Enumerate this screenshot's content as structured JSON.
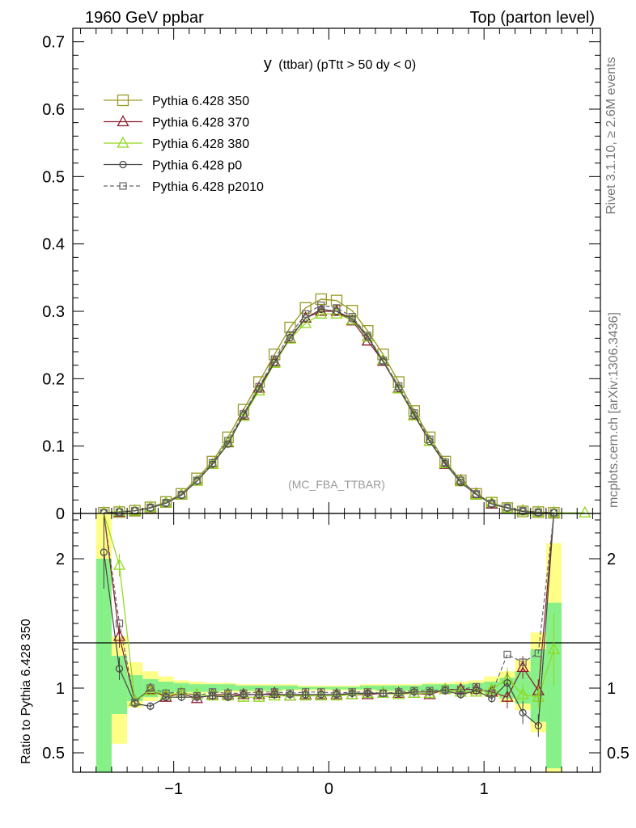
{
  "header": {
    "left": "1960 GeV ppbar",
    "right": "Top (parton level)"
  },
  "side_labels": {
    "rivet": "Rivet 3.1.10, ≥ 2.6M events",
    "mcplots": "mcplots.cern.ch [arXiv:1306.3436]"
  },
  "plot_title": {
    "main": "y",
    "sub": "(ttbar) (pTtt > 50 dy < 0)"
  },
  "watermark": "(MC_FBA_TTBAR)",
  "ratio_ylabel": "Ratio to Pythia 6.428 350",
  "colors": {
    "s350": "#9a9a26",
    "s370": "#8b1a2e",
    "s380": "#8fd81a",
    "p0": "#444444",
    "p2010": "#666666",
    "band_yellow": "#ffff88",
    "band_green": "#88f088"
  },
  "chart_data": [
    {
      "type": "line",
      "panel": "main",
      "xlim": [
        -1.65,
        1.75
      ],
      "ylim": [
        0,
        0.72
      ],
      "yticks": [
        "0",
        "0.1",
        "0.2",
        "0.3",
        "0.4",
        "0.5",
        "0.6",
        "0.7"
      ],
      "x": [
        -1.45,
        -1.35,
        -1.25,
        -1.15,
        -1.05,
        -0.95,
        -0.85,
        -0.75,
        -0.65,
        -0.55,
        -0.45,
        -0.35,
        -0.25,
        -0.15,
        -0.05,
        0.05,
        0.15,
        0.25,
        0.35,
        0.45,
        0.55,
        0.65,
        0.75,
        0.85,
        0.95,
        1.05,
        1.15,
        1.25,
        1.35,
        1.45,
        1.55,
        1.65
      ],
      "series": [
        {
          "name": "Pythia 6.428 350",
          "marker": "square",
          "values": [
            0.001,
            0.002,
            0.004,
            0.009,
            0.017,
            0.029,
            0.052,
            0.077,
            0.113,
            0.154,
            0.195,
            0.236,
            0.276,
            0.305,
            0.318,
            0.316,
            0.301,
            0.271,
            0.236,
            0.195,
            0.152,
            0.113,
            0.077,
            0.049,
            0.029,
            0.016,
            0.008,
            0.003,
            0.002,
            0.001,
            null,
            null
          ]
        },
        {
          "name": "Pythia 6.428 370",
          "marker": "triangle",
          "values": [
            0.001,
            0.002,
            0.004,
            0.009,
            0.016,
            0.028,
            0.048,
            0.073,
            0.105,
            0.146,
            0.186,
            0.225,
            0.26,
            0.29,
            0.3,
            0.3,
            0.286,
            0.256,
            0.226,
            0.186,
            0.146,
            0.107,
            0.073,
            0.049,
            0.029,
            0.014,
            0.008,
            0.004,
            0.002,
            0.001,
            null,
            null
          ]
        },
        {
          "name": "Pythia 6.428 380",
          "marker": "triangle",
          "values": [
            0.001,
            0.003,
            0.004,
            0.009,
            0.016,
            0.028,
            0.048,
            0.073,
            0.106,
            0.144,
            0.182,
            0.223,
            0.259,
            0.282,
            0.296,
            0.296,
            0.287,
            0.262,
            0.228,
            0.185,
            0.145,
            0.107,
            0.074,
            0.048,
            0.028,
            0.016,
            0.008,
            0.004,
            0.002,
            0.001,
            null,
            0.001
          ]
        },
        {
          "name": "Pythia 6.428 p0",
          "marker": "circle",
          "values": [
            0.001,
            0.002,
            0.004,
            0.008,
            0.015,
            0.027,
            0.048,
            0.073,
            0.103,
            0.146,
            0.185,
            0.224,
            0.261,
            0.29,
            0.303,
            0.3,
            0.289,
            0.262,
            0.225,
            0.186,
            0.146,
            0.107,
            0.074,
            0.046,
            0.028,
            0.014,
            0.008,
            0.003,
            0.001,
            0.001,
            null,
            null
          ]
        },
        {
          "name": "Pythia 6.428 p2010",
          "marker": "square-small",
          "dashed": true,
          "values": [
            0.001,
            0.002,
            0.004,
            0.009,
            0.016,
            0.028,
            0.049,
            0.075,
            0.108,
            0.148,
            0.188,
            0.229,
            0.265,
            0.296,
            0.309,
            0.305,
            0.292,
            0.264,
            0.227,
            0.189,
            0.149,
            0.11,
            0.076,
            0.049,
            0.029,
            0.015,
            0.009,
            0.004,
            0.002,
            0.001,
            null,
            null
          ]
        }
      ]
    },
    {
      "type": "line",
      "panel": "ratio",
      "xlim": [
        -1.65,
        1.75
      ],
      "ylim": [
        0.35,
        2.35
      ],
      "yticks": [
        "0.5",
        "1",
        "2"
      ],
      "xticks": [
        "−1",
        "0",
        "1"
      ],
      "x": [
        -1.45,
        -1.35,
        -1.25,
        -1.15,
        -1.05,
        -0.95,
        -0.85,
        -0.75,
        -0.65,
        -0.55,
        -0.45,
        -0.35,
        -0.25,
        -0.15,
        -0.05,
        0.05,
        0.15,
        0.25,
        0.35,
        0.45,
        0.55,
        0.65,
        0.75,
        0.85,
        0.95,
        1.05,
        1.15,
        1.25,
        1.35,
        1.45
      ],
      "band_yellow": [
        [
          0.35,
          2.35
        ],
        [
          0.57,
          1.4
        ],
        [
          0.85,
          1.2
        ],
        [
          0.9,
          1.13
        ],
        [
          0.93,
          1.09
        ],
        [
          0.95,
          1.06
        ],
        [
          0.96,
          1.05
        ],
        [
          0.96,
          1.04
        ],
        [
          0.97,
          1.04
        ],
        [
          0.97,
          1.03
        ],
        [
          0.97,
          1.03
        ],
        [
          0.97,
          1.03
        ],
        [
          0.98,
          1.03
        ],
        [
          0.98,
          1.02
        ],
        [
          0.98,
          1.02
        ],
        [
          0.98,
          1.02
        ],
        [
          0.98,
          1.02
        ],
        [
          0.98,
          1.03
        ],
        [
          0.97,
          1.03
        ],
        [
          0.97,
          1.03
        ],
        [
          0.97,
          1.03
        ],
        [
          0.97,
          1.04
        ],
        [
          0.96,
          1.04
        ],
        [
          0.96,
          1.05
        ],
        [
          0.95,
          1.06
        ],
        [
          0.93,
          1.09
        ],
        [
          0.89,
          1.13
        ],
        [
          0.83,
          1.22
        ],
        [
          0.66,
          1.43
        ],
        [
          0.35,
          2.12
        ]
      ],
      "band_green": [
        [
          0.35,
          2.0
        ],
        [
          0.8,
          1.25
        ],
        [
          0.9,
          1.1
        ],
        [
          0.93,
          1.07
        ],
        [
          0.95,
          1.05
        ],
        [
          0.97,
          1.04
        ],
        [
          0.97,
          1.03
        ],
        [
          0.97,
          1.03
        ],
        [
          0.98,
          1.03
        ],
        [
          0.98,
          1.02
        ],
        [
          0.98,
          1.02
        ],
        [
          0.98,
          1.02
        ],
        [
          0.99,
          1.02
        ],
        [
          0.99,
          1.01
        ],
        [
          0.99,
          1.01
        ],
        [
          0.99,
          1.01
        ],
        [
          0.99,
          1.01
        ],
        [
          0.99,
          1.02
        ],
        [
          0.98,
          1.02
        ],
        [
          0.98,
          1.02
        ],
        [
          0.98,
          1.02
        ],
        [
          0.98,
          1.03
        ],
        [
          0.97,
          1.03
        ],
        [
          0.97,
          1.03
        ],
        [
          0.97,
          1.04
        ],
        [
          0.95,
          1.05
        ],
        [
          0.92,
          1.08
        ],
        [
          0.88,
          1.13
        ],
        [
          0.74,
          1.3
        ],
        [
          0.38,
          1.66
        ]
      ],
      "series": [
        {
          "name": "Pythia 6.428 370",
          "marker": "triangle",
          "values": [
            2.4,
            1.4,
            0.9,
            0.99,
            0.93,
            0.96,
            0.92,
            0.95,
            0.95,
            0.95,
            0.95,
            0.96,
            0.94,
            0.95,
            0.95,
            0.95,
            0.95,
            0.95,
            0.96,
            0.96,
            0.96,
            0.95,
            0.99,
            0.99,
            0.99,
            0.97,
            0.93,
            1.16,
            0.98,
            2.4
          ]
        },
        {
          "name": "Pythia 6.428 380",
          "marker": "triangle",
          "values": [
            2.4,
            1.95,
            0.9,
            0.98,
            0.95,
            0.96,
            0.95,
            0.94,
            0.94,
            0.93,
            0.93,
            0.94,
            0.94,
            0.94,
            0.94,
            0.94,
            0.95,
            0.96,
            0.96,
            0.95,
            0.96,
            0.96,
            0.99,
            0.97,
            0.97,
            0.99,
            1.07,
            0.95,
            0.93,
            1.3
          ]
        },
        {
          "name": "Pythia 6.428 p0",
          "marker": "circle",
          "values": [
            2.05,
            1.15,
            0.88,
            0.86,
            0.93,
            0.93,
            0.93,
            0.94,
            0.93,
            0.95,
            0.95,
            0.95,
            0.95,
            0.95,
            0.95,
            0.95,
            0.96,
            0.96,
            0.96,
            0.96,
            0.97,
            0.97,
            0.98,
            0.95,
            0.98,
            0.92,
            1.04,
            0.81,
            0.71,
            2.37
          ]
        },
        {
          "name": "Pythia 6.428 p2010",
          "marker": "square-small",
          "dashed": true,
          "values": [
            2.4,
            1.5,
            0.89,
            1.0,
            0.96,
            0.97,
            0.94,
            0.97,
            0.96,
            0.96,
            0.97,
            0.97,
            0.96,
            0.97,
            0.97,
            0.96,
            0.97,
            0.97,
            0.96,
            0.97,
            0.98,
            0.98,
            0.99,
            0.99,
            1.01,
            0.96,
            1.26,
            1.2,
            1.27,
            2.4
          ]
        }
      ]
    }
  ]
}
